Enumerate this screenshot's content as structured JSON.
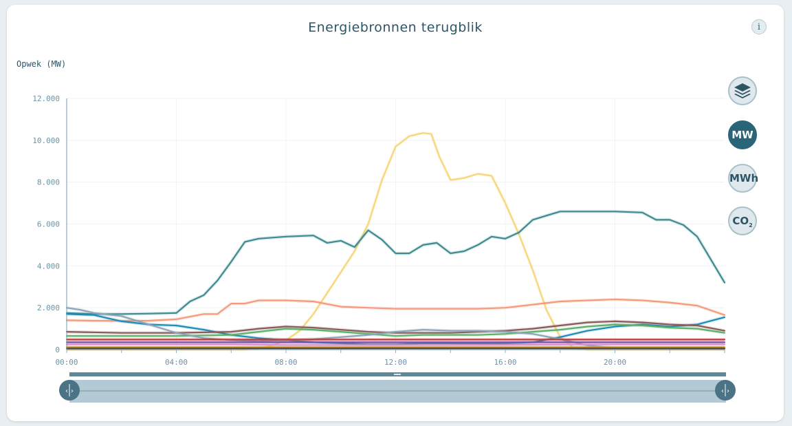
{
  "title": "Energiebronnen terugblik",
  "info_label": "i",
  "y_axis_label": "Opwek (MW)",
  "side_buttons": {
    "layers_icon": "layers-icon",
    "mw_label": "MW",
    "mwh_label": "MWh",
    "co2_label": "CO",
    "co2_sub": "2",
    "active": "MW"
  },
  "chart_data": {
    "type": "line",
    "x_ticks": [
      "00:00",
      "04:00",
      "08:00",
      "12:00",
      "16:00",
      "20:00"
    ],
    "y_ticks": [
      "0",
      "2.000",
      "4.000",
      "6.000",
      "8.000",
      "10.000",
      "12.000"
    ],
    "ylim": [
      0,
      12000
    ],
    "xlim_hours": [
      0,
      24
    ],
    "grid": true,
    "series": [
      {
        "color": "#f5d77a",
        "x": [
          0,
          6.5,
          7,
          7.5,
          8,
          8.5,
          9,
          9.5,
          10,
          10.5,
          11,
          11.5,
          12,
          12.5,
          13,
          13.3,
          13.6,
          14,
          14.5,
          15,
          15.5,
          16,
          16.5,
          17,
          17.5,
          18,
          18.5,
          19,
          24
        ],
        "y": [
          0,
          0,
          60,
          200,
          450,
          900,
          1700,
          2700,
          3700,
          4700,
          6000,
          8100,
          9700,
          10200,
          10350,
          10300,
          9200,
          8100,
          8200,
          8400,
          8300,
          7000,
          5500,
          3800,
          1900,
          600,
          80,
          0,
          0
        ]
      },
      {
        "color": "#3f8a8e",
        "x": [
          0,
          1,
          2,
          3,
          4,
          4.5,
          5,
          5.5,
          6,
          6.5,
          7,
          8,
          9,
          9.5,
          10,
          10.5,
          11,
          11.5,
          12,
          12.5,
          13,
          13.5,
          14,
          14.5,
          15,
          15.5,
          16,
          16.5,
          17,
          17.5,
          18,
          19,
          20,
          21,
          21.5,
          22,
          22.5,
          23,
          24
        ],
        "y": [
          1750,
          1700,
          1700,
          1720,
          1750,
          2300,
          2600,
          3300,
          4200,
          5150,
          5300,
          5400,
          5450,
          5100,
          5200,
          4900,
          5700,
          5250,
          4600,
          4600,
          5000,
          5100,
          4600,
          4700,
          5000,
          5400,
          5300,
          5600,
          6200,
          6400,
          6600,
          6600,
          6600,
          6550,
          6200,
          6200,
          5950,
          5400,
          3200
        ]
      },
      {
        "color": "#f59a7a",
        "x": [
          0,
          1,
          2,
          3,
          4,
          5,
          5.5,
          6,
          6.5,
          7,
          8,
          9,
          10,
          11,
          12,
          13,
          14,
          15,
          16,
          17,
          18,
          19,
          20,
          21,
          22,
          23,
          24
        ],
        "y": [
          1400,
          1380,
          1370,
          1380,
          1450,
          1700,
          1700,
          2200,
          2200,
          2350,
          2350,
          2300,
          2050,
          2000,
          1950,
          1950,
          1950,
          1950,
          2000,
          2150,
          2300,
          2350,
          2400,
          2350,
          2250,
          2100,
          1650
        ]
      },
      {
        "color": "#1e8bb6",
        "x": [
          0,
          1,
          2,
          3,
          4,
          5,
          6,
          7,
          8,
          9,
          10,
          11,
          12,
          13,
          14,
          15,
          16,
          17,
          18,
          19,
          20,
          21,
          22,
          23,
          24
        ],
        "y": [
          1700,
          1650,
          1350,
          1200,
          1150,
          950,
          700,
          550,
          450,
          350,
          300,
          250,
          250,
          300,
          300,
          300,
          300,
          350,
          600,
          900,
          1100,
          1200,
          1100,
          1200,
          1550
        ]
      },
      {
        "color": "#8a5a5a",
        "x": [
          0,
          2,
          4,
          6,
          7,
          8,
          9,
          10,
          11,
          12,
          13,
          14,
          15,
          16,
          17,
          18,
          19,
          20,
          21,
          22,
          23,
          24
        ],
        "y": [
          850,
          800,
          800,
          850,
          1000,
          1100,
          1050,
          950,
          850,
          800,
          800,
          800,
          850,
          900,
          1000,
          1150,
          1300,
          1350,
          1300,
          1200,
          1150,
          900
        ]
      },
      {
        "color": "#5bb06a",
        "x": [
          0,
          2,
          4,
          6,
          7,
          8,
          9,
          10,
          11,
          12,
          13,
          14,
          15,
          16,
          17,
          18,
          19,
          20,
          21,
          22,
          23,
          24
        ],
        "y": [
          650,
          650,
          650,
          700,
          850,
          1000,
          950,
          850,
          750,
          650,
          700,
          700,
          700,
          750,
          850,
          950,
          1100,
          1200,
          1150,
          1050,
          1000,
          800
        ]
      },
      {
        "color": "#8aa4b8",
        "x": [
          0,
          0.5,
          1,
          2,
          3,
          4,
          5,
          6,
          7,
          8,
          9,
          10,
          11,
          12,
          13,
          14,
          15,
          16,
          17,
          18,
          19,
          20,
          24
        ],
        "y": [
          2000,
          1900,
          1750,
          1600,
          1200,
          800,
          550,
          450,
          400,
          450,
          500,
          600,
          700,
          850,
          950,
          900,
          900,
          850,
          750,
          500,
          200,
          80,
          50
        ]
      },
      {
        "color": "#c23a3a",
        "x": [
          0,
          24
        ],
        "y": [
          480,
          480
        ]
      },
      {
        "color": "#7a4fa8",
        "x": [
          0,
          24
        ],
        "y": [
          350,
          350
        ]
      },
      {
        "color": "#d88fd0",
        "x": [
          0,
          6,
          8,
          12,
          16,
          20,
          24
        ],
        "y": [
          250,
          250,
          220,
          220,
          230,
          250,
          250
        ]
      },
      {
        "color": "#e0a030",
        "x": [
          0,
          24
        ],
        "y": [
          120,
          120
        ]
      },
      {
        "color": "#4a4a4a",
        "x": [
          0,
          24
        ],
        "y": [
          60,
          60
        ]
      }
    ]
  },
  "navigator": {
    "handle_left": "navigator-left-handle",
    "handle_right": "navigator-right-handle"
  }
}
